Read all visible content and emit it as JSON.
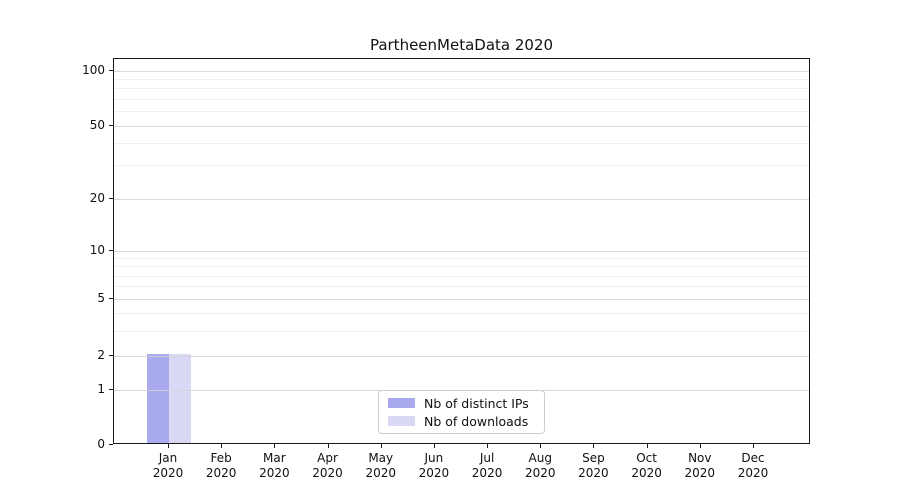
{
  "chart_data": {
    "type": "bar",
    "title": "PartheenMetaData 2020",
    "year_label": "2020",
    "categories": [
      "Jan",
      "Feb",
      "Mar",
      "Apr",
      "May",
      "Jun",
      "Jul",
      "Aug",
      "Sep",
      "Oct",
      "Nov",
      "Dec"
    ],
    "series": [
      {
        "name": "Nb of distinct IPs",
        "color": "#a9a9ee",
        "values": [
          2,
          0,
          0,
          0,
          0,
          0,
          0,
          0,
          0,
          0,
          0,
          0
        ]
      },
      {
        "name": "Nb of downloads",
        "color": "#d9d9f6",
        "values": [
          2,
          0,
          0,
          0,
          0,
          0,
          0,
          0,
          0,
          0,
          0,
          0
        ]
      }
    ],
    "yticks": [
      0,
      1,
      2,
      5,
      10,
      20,
      50,
      100
    ],
    "yscale": "symlog",
    "ylim": [
      0,
      120
    ],
    "xlabel": "",
    "ylabel": "",
    "grid": true,
    "legend_position": "lower center"
  }
}
